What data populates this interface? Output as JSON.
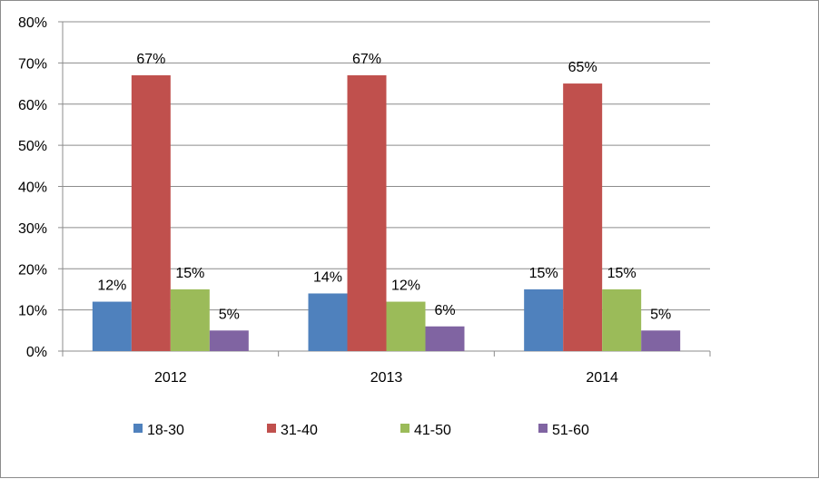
{
  "chart_data": {
    "type": "bar",
    "categories": [
      "2012",
      "2013",
      "2014"
    ],
    "series": [
      {
        "name": "18-30",
        "color": "#4F81BD",
        "values": [
          12,
          14,
          15
        ],
        "labels": [
          "12%",
          "14%",
          "15%"
        ]
      },
      {
        "name": "31-40",
        "color": "#C0504D",
        "values": [
          67,
          67,
          65
        ],
        "labels": [
          "67%",
          "67%",
          "65%"
        ]
      },
      {
        "name": "41-50",
        "color": "#9BBB59",
        "values": [
          15,
          12,
          15
        ],
        "labels": [
          "15%",
          "12%",
          "15%"
        ]
      },
      {
        "name": "51-60",
        "color": "#8064A2",
        "values": [
          5,
          6,
          5
        ],
        "labels": [
          "5%",
          "6%",
          "5%"
        ]
      }
    ],
    "y_ticks": [
      "0%",
      "10%",
      "20%",
      "30%",
      "40%",
      "50%",
      "60%",
      "70%",
      "80%"
    ],
    "ylim": [
      0,
      80
    ],
    "y_tick_step": 10,
    "grid": true,
    "legend_position": "bottom"
  }
}
